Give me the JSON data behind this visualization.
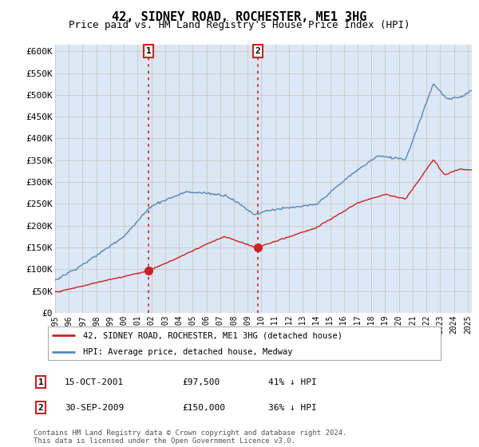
{
  "title": "42, SIDNEY ROAD, ROCHESTER, ME1 3HG",
  "subtitle": "Price paid vs. HM Land Registry's House Price Index (HPI)",
  "title_fontsize": 11,
  "subtitle_fontsize": 9,
  "background_color": "#ffffff",
  "plot_bg_color": "#dce8f5",
  "grid_color": "#cccccc",
  "shade_color": "#c5d8ee",
  "ylabel_ticks": [
    "£0",
    "£50K",
    "£100K",
    "£150K",
    "£200K",
    "£250K",
    "£300K",
    "£350K",
    "£400K",
    "£450K",
    "£500K",
    "£550K",
    "£600K"
  ],
  "ytick_values": [
    0,
    50000,
    100000,
    150000,
    200000,
    250000,
    300000,
    350000,
    400000,
    450000,
    500000,
    550000,
    600000
  ],
  "ylim": [
    0,
    615000
  ],
  "hpi_color": "#5588bb",
  "price_color": "#cc2222",
  "sale1_x": 2001.79,
  "sale1_y": 97500,
  "sale2_x": 2009.75,
  "sale2_y": 150000,
  "sale1_label": "1",
  "sale2_label": "2",
  "vline_color": "#cc2222",
  "legend_line1": "42, SIDNEY ROAD, ROCHESTER, ME1 3HG (detached house)",
  "legend_line2": "HPI: Average price, detached house, Medway",
  "table_row1": [
    "1",
    "15-OCT-2001",
    "£97,500",
    "41% ↓ HPI"
  ],
  "table_row2": [
    "2",
    "30-SEP-2009",
    "£150,000",
    "36% ↓ HPI"
  ],
  "footer": "Contains HM Land Registry data © Crown copyright and database right 2024.\nThis data is licensed under the Open Government Licence v3.0.",
  "xmin": 1995,
  "xmax": 2025.3
}
